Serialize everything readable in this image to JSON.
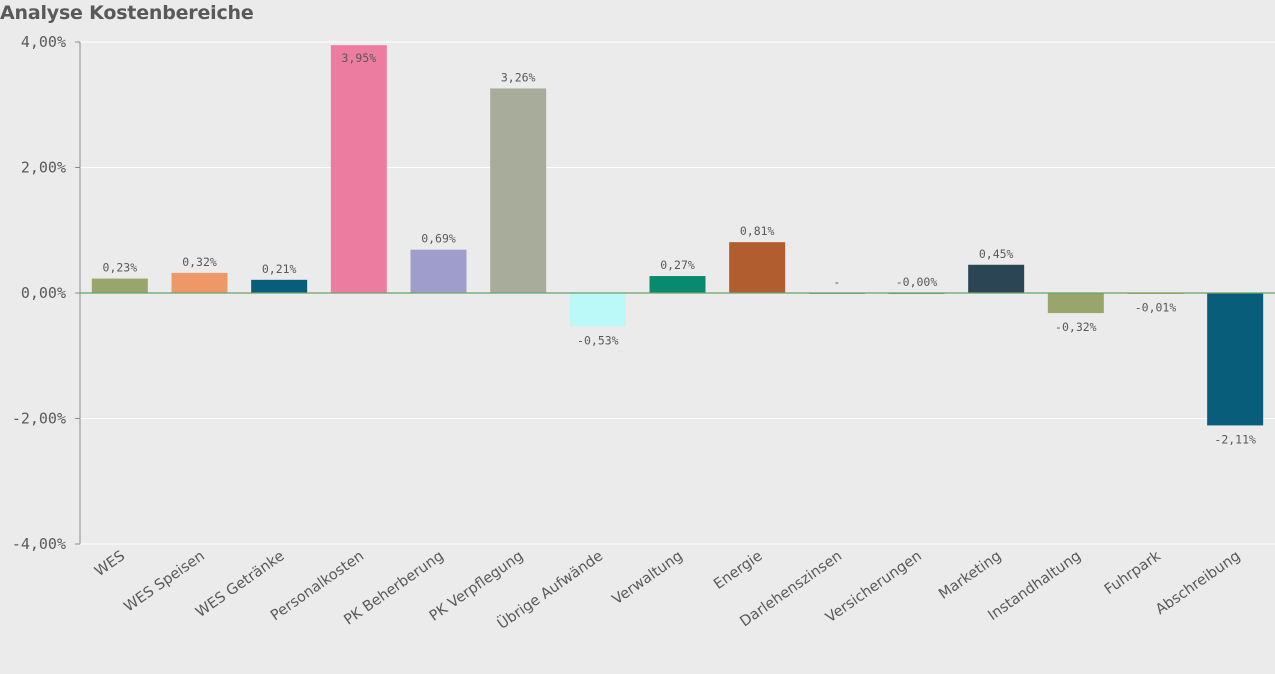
{
  "chart_data": {
    "type": "bar",
    "title": "Analyse Kostenbereiche",
    "categories": [
      "WES",
      "WES Speisen",
      "WES Getränke",
      "Personalkosten",
      "PK Beherberung",
      "PK Verpflegung",
      "Übrige Aufwände",
      "Verwaltung",
      "Energie",
      "Darlehenszinsen",
      "Versicherungen",
      "Marketing",
      "Instandhaltung",
      "Fuhrpark",
      "Abschreibung"
    ],
    "values": [
      0.23,
      0.32,
      0.21,
      3.95,
      0.69,
      3.26,
      -0.53,
      0.27,
      0.81,
      0,
      -0.0,
      0.45,
      -0.32,
      -0.01,
      -2.11
    ],
    "data_labels": [
      "0,23%",
      "0,32%",
      "0,21%",
      "3,95%",
      "0,69%",
      "3,26%",
      "-0,53%",
      "0,27%",
      "0,81%",
      "-",
      "-0,00%",
      "0,45%",
      "-0,32%",
      "-0,01%",
      "-2,11%"
    ],
    "colors": [
      "#99a66b",
      "#ee9866",
      "#075d7a",
      "#ec7ca0",
      "#9f9dcb",
      "#a8ac9b",
      "#bbf8f8",
      "#078a6d",
      "#b15d30",
      "#999999",
      "#6aa36a",
      "#2b4555",
      "#99a66b",
      "#ee9866",
      "#075d7a"
    ],
    "ylim": [
      -4,
      4
    ],
    "yticks": [
      4,
      2,
      0,
      -2,
      -4
    ],
    "ytick_labels": [
      "4,00%",
      "2,00%",
      "0,00%",
      "-2,00%",
      "-4,00%"
    ],
    "xlabel": "",
    "ylabel": "",
    "grid": true,
    "zero_line_color": "#6aa36a",
    "highlight_label_color": "#ffffff"
  }
}
